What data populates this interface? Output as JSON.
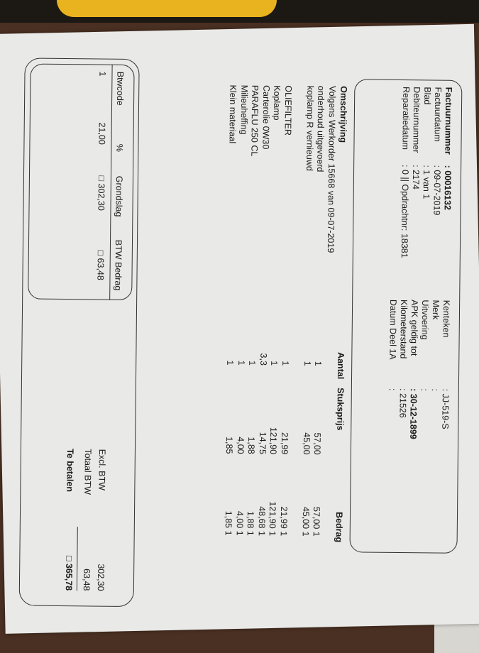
{
  "header": {
    "left": [
      {
        "label": "Factuurnummer",
        "value": ": 00016132"
      },
      {
        "label": "Factuurdatum",
        "value": ": 09-07-2019"
      },
      {
        "label": "Blad",
        "value": ": 1 van 1"
      },
      {
        "label": "Debiteurnummer",
        "value": ": 2174"
      },
      {
        "label": "Reparatiedatum",
        "value": ": 0 || Opdrachtnr: 18381"
      }
    ],
    "right": [
      {
        "label": "Kenteken",
        "value": ": JJ-519-S"
      },
      {
        "label": "Merk",
        "value": ":"
      },
      {
        "label": "Uitvoering",
        "value": ":"
      },
      {
        "label": "APK geldig tot",
        "value": ": 30-12-1899"
      },
      {
        "label": "Kilometerstand",
        "value": ": 21526"
      },
      {
        "label": "Datum Deel 1A",
        "value": ":"
      }
    ]
  },
  "lines": {
    "columns": {
      "description": "Omschrijving",
      "qty": "Aantal",
      "unit_price": "Stuksprijs",
      "amount": "Bedrag"
    },
    "rows": [
      {
        "description": "Volgens Werkorder 15668 van 09-07-2019",
        "qty": "",
        "unit_price": "",
        "amount": ""
      },
      {
        "description": "onderhoud uitgevoerd",
        "qty": "1",
        "unit_price": "57,00",
        "amount": "57,00 1"
      },
      {
        "description": "koplamp R vernieuwd",
        "qty": "1",
        "unit_price": "45,00",
        "amount": "45,00 1"
      },
      {
        "description": "",
        "qty": "",
        "unit_price": "",
        "amount": ""
      },
      {
        "description": "OLIEFILTER",
        "qty": "1",
        "unit_price": "21,99",
        "amount": "21,99 1"
      },
      {
        "description": "Koplamp",
        "qty": "1",
        "unit_price": "121,90",
        "amount": "121,90 1"
      },
      {
        "description": "Carterolie 0W30",
        "qty": "3,3",
        "unit_price": "14,75",
        "amount": "48,68 1"
      },
      {
        "description": "PARAFLU 250 CL",
        "qty": "1",
        "unit_price": "1,88",
        "amount": "1,88 1"
      },
      {
        "description": "Milieuheffing",
        "qty": "1",
        "unit_price": "4,00",
        "amount": "4,00 1"
      },
      {
        "description": "Klein materiaal",
        "qty": "1",
        "unit_price": "1,85",
        "amount": "1,85 1"
      }
    ]
  },
  "vat": {
    "columns": [
      "Btwcode",
      "%",
      "Grondslag",
      "BTW Bedrag"
    ],
    "row": [
      "1",
      "21,00",
      "□ 302,30",
      "□ 63,48"
    ]
  },
  "totals": {
    "excl_label": "Excl. BTW",
    "excl_value": "302,30",
    "vat_label": "Totaal BTW",
    "vat_value": "63,48",
    "pay_label": "Te betalen",
    "pay_value": "□ 365,78"
  }
}
